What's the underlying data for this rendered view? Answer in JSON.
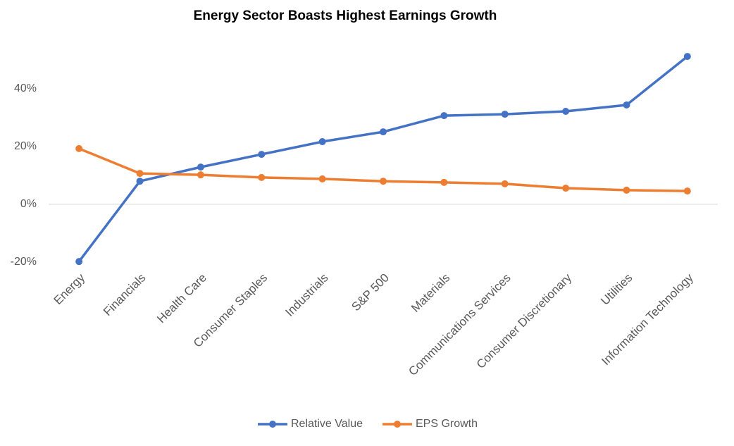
{
  "chart_data": {
    "type": "line",
    "title": "Energy Sector Boasts Highest Earnings Growth",
    "categories": [
      "Energy",
      "Financials",
      "Health Care",
      "Consumer Staples",
      "Industrials",
      "S&P 500",
      "Materials",
      "Communications Services",
      "Consumer Discretionary",
      "Utilities",
      "Information Technology"
    ],
    "series": [
      {
        "name": "Relative Value",
        "color": "#4472c4",
        "values": [
          -19.8,
          8.0,
          12.9,
          17.3,
          21.7,
          25.1,
          30.7,
          31.2,
          32.2,
          34.4,
          51.2
        ]
      },
      {
        "name": "EPS Growth",
        "color": "#ed7d31",
        "values": [
          19.3,
          10.7,
          10.2,
          9.3,
          8.8,
          8.0,
          7.6,
          7.1,
          5.6,
          4.9,
          4.6
        ]
      }
    ],
    "ylim": [
      -20,
      55
    ],
    "yticks": [
      {
        "value": -20,
        "label": "-20%"
      },
      {
        "value": 0,
        "label": "0%"
      },
      {
        "value": 20,
        "label": "20%"
      },
      {
        "value": 40,
        "label": "40%"
      }
    ],
    "grid": false,
    "legend": "bottom"
  }
}
